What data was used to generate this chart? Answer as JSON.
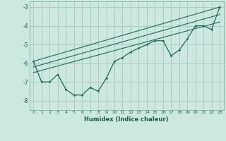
{
  "xlabel": "Humidex (Indice chaleur)",
  "bg_color": "#cce8e0",
  "grid_color": "#aaccc4",
  "line_color": "#1a6b5a",
  "xlim": [
    -0.5,
    23.5
  ],
  "ylim": [
    -8.5,
    -2.7
  ],
  "yticks": [
    -8,
    -7,
    -6,
    -5,
    -4,
    -3
  ],
  "xticks": [
    0,
    1,
    2,
    3,
    4,
    5,
    6,
    7,
    8,
    9,
    10,
    11,
    12,
    13,
    14,
    15,
    16,
    17,
    18,
    19,
    20,
    21,
    22,
    23
  ],
  "data_line": [
    [
      0,
      -5.9
    ],
    [
      1,
      -7.0
    ],
    [
      2,
      -7.0
    ],
    [
      3,
      -6.6
    ],
    [
      4,
      -7.4
    ],
    [
      5,
      -7.7
    ],
    [
      6,
      -7.7
    ],
    [
      7,
      -7.3
    ],
    [
      8,
      -7.5
    ],
    [
      9,
      -6.8
    ],
    [
      10,
      -5.9
    ],
    [
      11,
      -5.7
    ],
    [
      12,
      -5.4
    ],
    [
      13,
      -5.2
    ],
    [
      14,
      -5.0
    ],
    [
      15,
      -4.8
    ],
    [
      16,
      -4.8
    ],
    [
      17,
      -5.6
    ],
    [
      18,
      -5.3
    ],
    [
      19,
      -4.7
    ],
    [
      20,
      -4.0
    ],
    [
      21,
      -4.0
    ],
    [
      22,
      -4.2
    ],
    [
      23,
      -3.0
    ]
  ],
  "line1": [
    [
      0,
      -5.9
    ],
    [
      23,
      -3.0
    ]
  ],
  "line2": [
    [
      0,
      -6.2
    ],
    [
      23,
      -3.4
    ]
  ],
  "line3": [
    [
      0,
      -6.5
    ],
    [
      23,
      -3.8
    ]
  ]
}
